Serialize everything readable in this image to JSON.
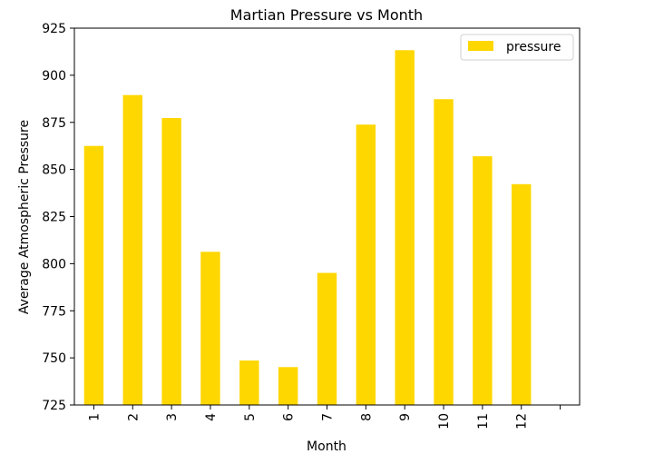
{
  "chart_data": {
    "type": "bar",
    "title": "Martian Pressure vs Month",
    "xlabel": "Month",
    "ylabel": "Average Atmospheric Pressure",
    "categories": [
      "1",
      "2",
      "3",
      "4",
      "5",
      "6",
      "7",
      "8",
      "9",
      "10",
      "11",
      "12"
    ],
    "series": [
      {
        "name": "pressure",
        "color": "#FFD700",
        "values": [
          862.5,
          889.5,
          877.3,
          806.3,
          748.6,
          745.1,
          795.1,
          873.8,
          913.3,
          887.3,
          857.0,
          842.2
        ]
      }
    ],
    "ylim": [
      725,
      925
    ],
    "yticks": [
      725,
      750,
      775,
      800,
      825,
      850,
      875,
      900,
      925
    ],
    "grid": false,
    "legend_position": "top-right"
  }
}
